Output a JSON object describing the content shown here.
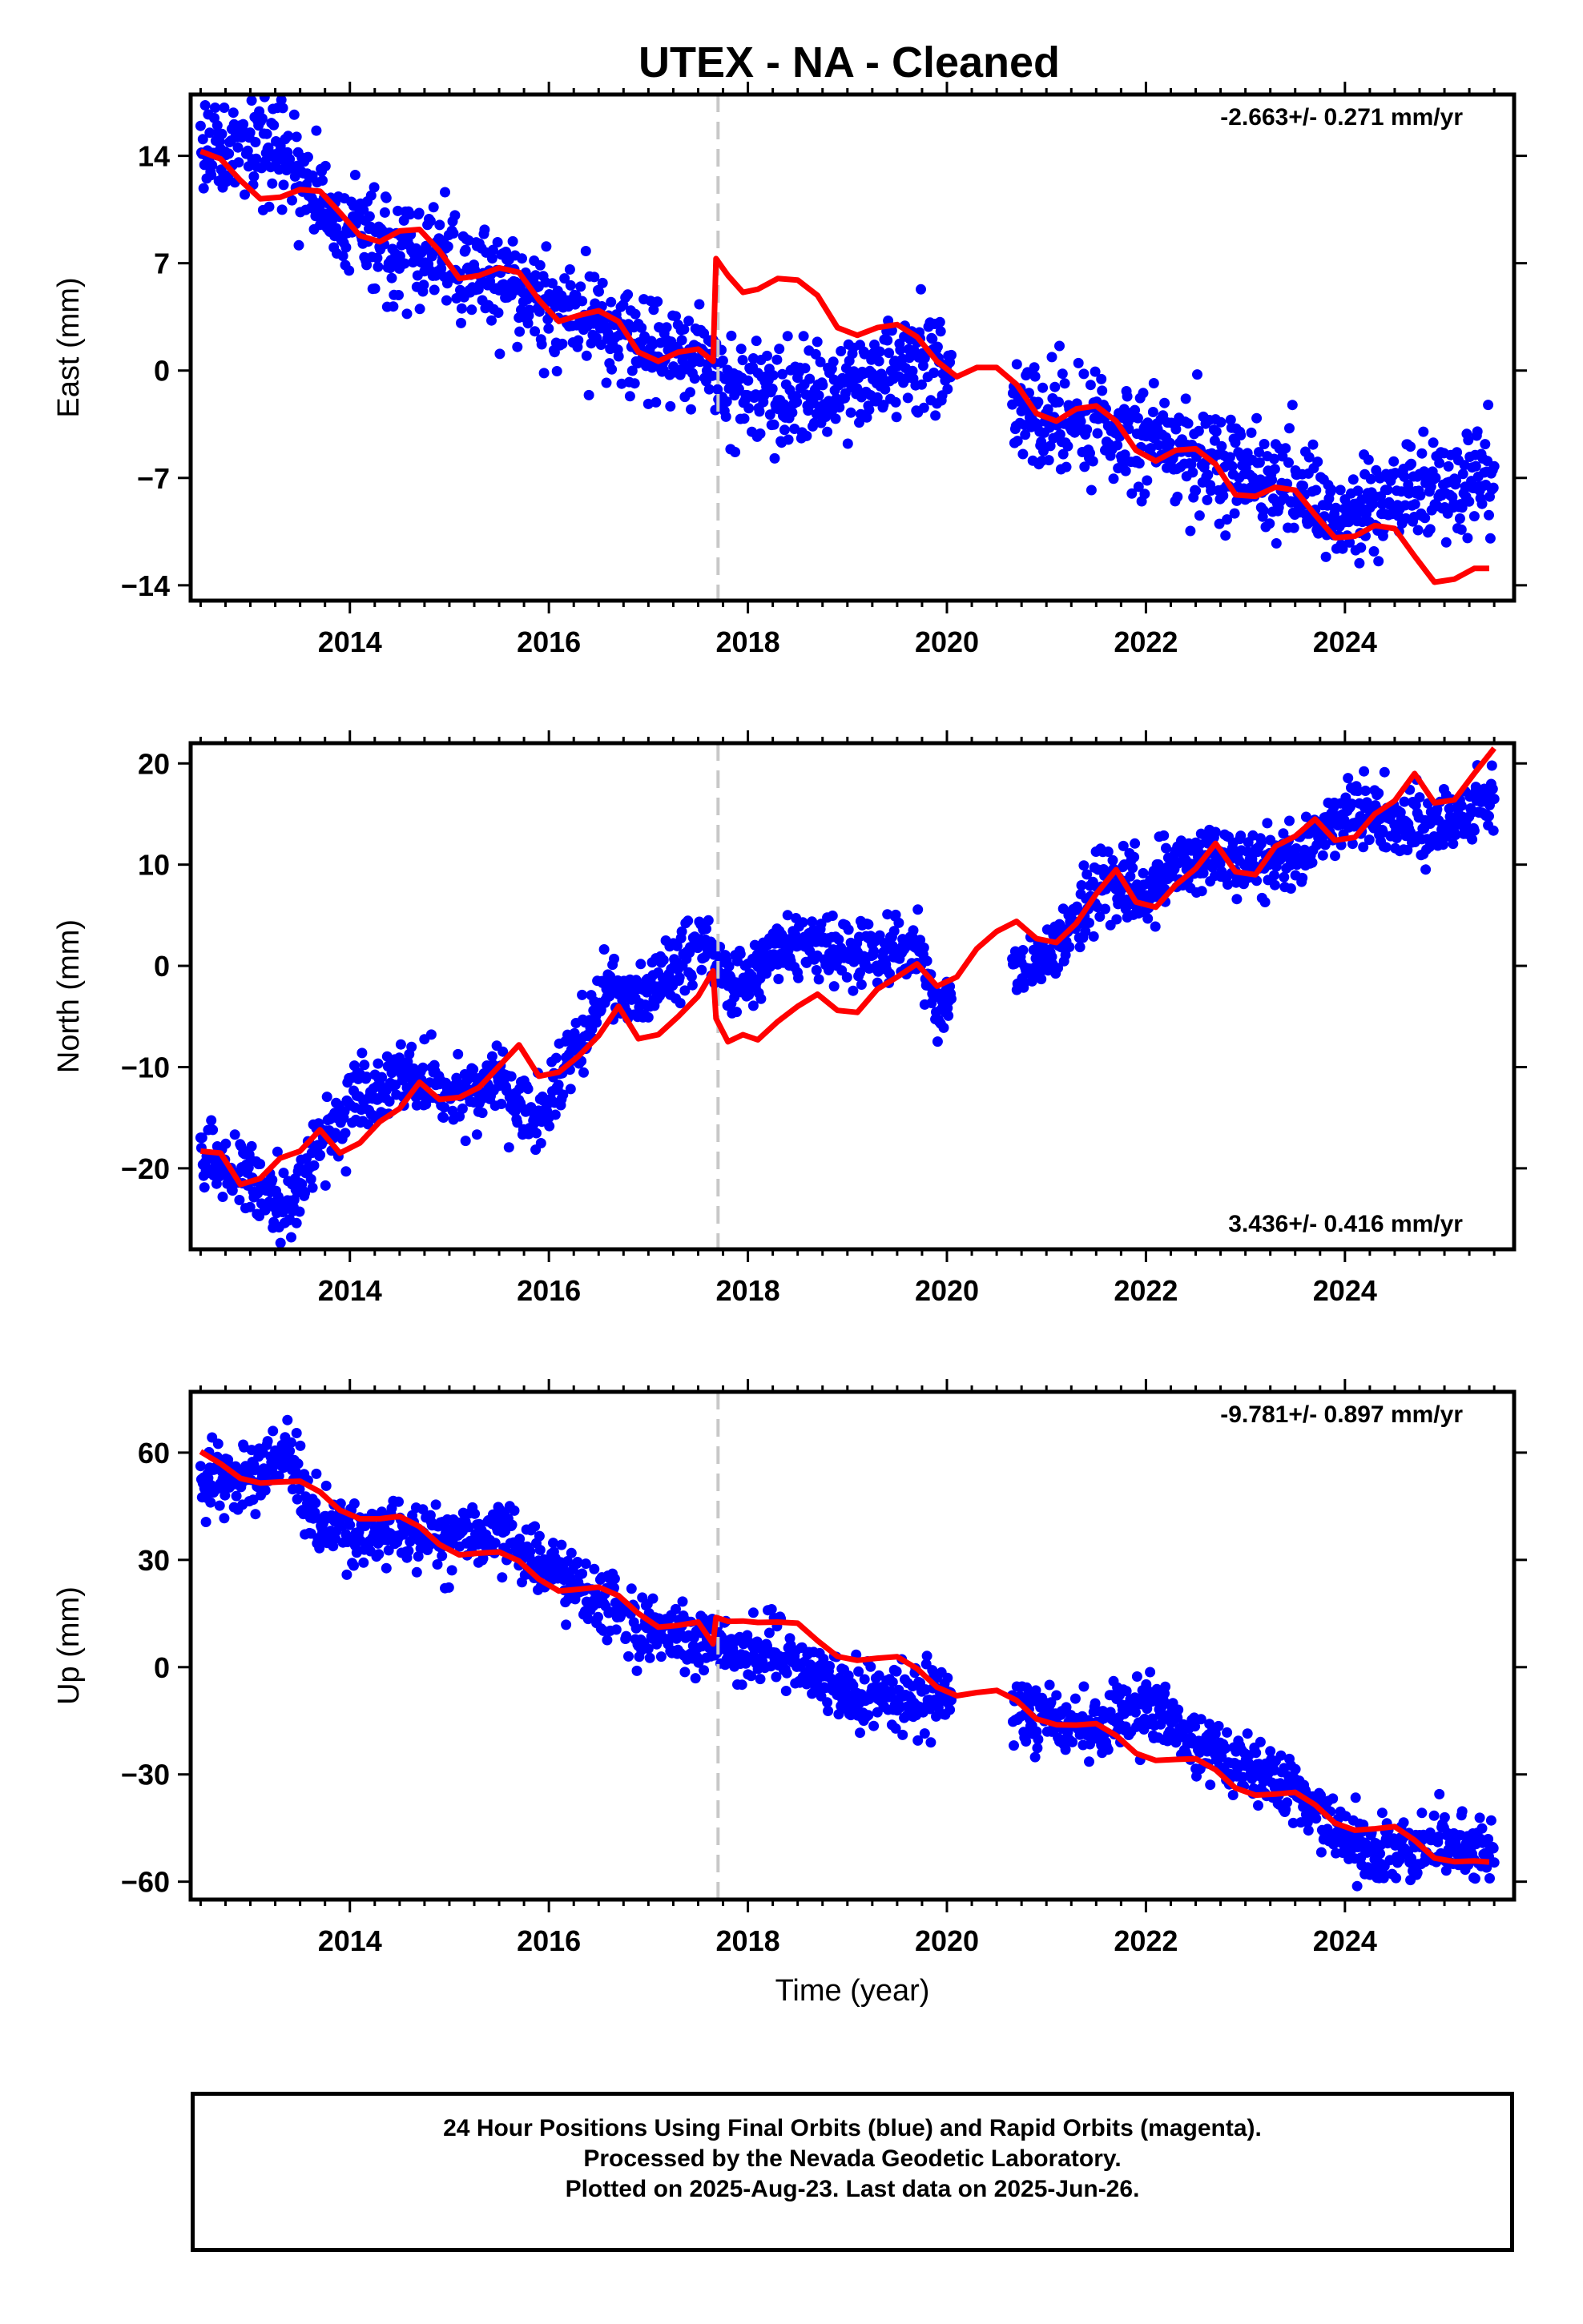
{
  "title": "UTEX  - NA - Cleaned",
  "footer": {
    "line1": "24 Hour Positions Using Final Orbits (blue) and Rapid Orbits (magenta).",
    "line2": "Processed by the Nevada Geodetic Laboratory.",
    "line3": "Plotted on 2025-Aug-23. Last data on 2025-Jun-26."
  },
  "colors": {
    "points": "#0000ff",
    "model": "#ff0000",
    "offset_line": "#c8c8c8"
  },
  "chart_data": [
    {
      "type": "scatter",
      "ylabel": "East (mm)",
      "xlabel": "",
      "rate_label": "-2.663+/- 0.271 mm/yr",
      "rate_position": "top-right",
      "xlim": [
        2012.4,
        2025.7
      ],
      "ylim": [
        -15,
        18
      ],
      "yticks": [
        -14,
        -7,
        0,
        7,
        14
      ],
      "xticks": [
        2014,
        2016,
        2018,
        2020,
        2022,
        2024
      ],
      "offset_epoch": 2017.7,
      "trend_points": [
        [
          2012.5,
          14.8
        ],
        [
          2013.3,
          13.9
        ],
        [
          2014.0,
          9.0
        ],
        [
          2015.0,
          7.0
        ],
        [
          2016.0,
          4.5
        ],
        [
          2017.0,
          1.5
        ],
        [
          2017.65,
          1.0
        ],
        [
          2017.7,
          -1.0
        ],
        [
          2018.5,
          -1.8
        ],
        [
          2019.5,
          0.2
        ],
        [
          2019.85,
          1.0
        ],
        [
          2020.0,
          0.5
        ],
        [
          2021.0,
          -3.0
        ],
        [
          2022.0,
          -4.5
        ],
        [
          2023.0,
          -6.5
        ],
        [
          2024.0,
          -10.0
        ],
        [
          2024.5,
          -7.5
        ],
        [
          2025.5,
          -7.0
        ]
      ],
      "model_points": [
        [
          2012.5,
          14.3
        ],
        [
          2012.7,
          13.8
        ],
        [
          2012.9,
          12.4
        ],
        [
          2013.1,
          11.2
        ],
        [
          2013.3,
          11.3
        ],
        [
          2013.5,
          11.8
        ],
        [
          2013.7,
          11.7
        ],
        [
          2013.9,
          10.3
        ],
        [
          2014.1,
          8.8
        ],
        [
          2014.3,
          8.4
        ],
        [
          2014.5,
          9.1
        ],
        [
          2014.7,
          9.2
        ],
        [
          2014.9,
          7.8
        ],
        [
          2015.1,
          6.0
        ],
        [
          2015.3,
          6.2
        ],
        [
          2015.5,
          6.7
        ],
        [
          2015.7,
          6.4
        ],
        [
          2015.9,
          4.6
        ],
        [
          2016.1,
          3.2
        ],
        [
          2016.3,
          3.6
        ],
        [
          2016.5,
          3.9
        ],
        [
          2016.7,
          3.2
        ],
        [
          2016.9,
          1.2
        ],
        [
          2017.1,
          0.6
        ],
        [
          2017.3,
          1.2
        ],
        [
          2017.5,
          1.4
        ],
        [
          2017.65,
          0.6
        ],
        [
          2017.68,
          7.3
        ],
        [
          2017.8,
          6.2
        ],
        [
          2017.95,
          5.1
        ],
        [
          2018.1,
          5.3
        ],
        [
          2018.3,
          6.0
        ],
        [
          2018.5,
          5.9
        ],
        [
          2018.7,
          4.9
        ],
        [
          2018.9,
          2.8
        ],
        [
          2019.1,
          2.3
        ],
        [
          2019.3,
          2.8
        ],
        [
          2019.5,
          3.0
        ],
        [
          2019.7,
          2.2
        ],
        [
          2019.9,
          0.6
        ],
        [
          2020.1,
          -0.4
        ],
        [
          2020.3,
          0.2
        ],
        [
          2020.5,
          0.2
        ],
        [
          2020.7,
          -0.9
        ],
        [
          2020.9,
          -2.8
        ],
        [
          2021.1,
          -3.3
        ],
        [
          2021.3,
          -2.5
        ],
        [
          2021.5,
          -2.3
        ],
        [
          2021.7,
          -3.3
        ],
        [
          2021.9,
          -5.2
        ],
        [
          2022.1,
          -5.9
        ],
        [
          2022.3,
          -5.2
        ],
        [
          2022.5,
          -5.1
        ],
        [
          2022.7,
          -6.1
        ],
        [
          2022.9,
          -8.1
        ],
        [
          2023.1,
          -8.2
        ],
        [
          2023.3,
          -7.6
        ],
        [
          2023.5,
          -7.8
        ],
        [
          2023.7,
          -9.4
        ],
        [
          2023.9,
          -10.9
        ],
        [
          2024.1,
          -10.8
        ],
        [
          2024.3,
          -10.1
        ],
        [
          2024.5,
          -10.3
        ],
        [
          2024.7,
          -12.1
        ],
        [
          2024.9,
          -13.8
        ],
        [
          2025.1,
          -13.6
        ],
        [
          2025.3,
          -12.9
        ],
        [
          2025.45,
          -12.9
        ]
      ],
      "point_count": 1700,
      "noise_mm": 1.6
    },
    {
      "type": "scatter",
      "ylabel": "North (mm)",
      "xlabel": "",
      "rate_label": "3.436+/- 0.416 mm/yr",
      "rate_position": "bottom-right",
      "xlim": [
        2012.4,
        2025.7
      ],
      "ylim": [
        -28,
        22
      ],
      "yticks": [
        -20,
        -10,
        0,
        10,
        20
      ],
      "xticks": [
        2014,
        2016,
        2018,
        2020,
        2022,
        2024
      ],
      "offset_epoch": 2017.7,
      "trend_points": [
        [
          2012.5,
          -19.5
        ],
        [
          2013.0,
          -21.0
        ],
        [
          2013.4,
          -24.0
        ],
        [
          2013.7,
          -17.0
        ],
        [
          2014.0,
          -14.5
        ],
        [
          2014.5,
          -10.0
        ],
        [
          2015.0,
          -13.0
        ],
        [
          2015.5,
          -11.5
        ],
        [
          2015.9,
          -15.5
        ],
        [
          2016.3,
          -8.0
        ],
        [
          2016.6,
          -2.0
        ],
        [
          2017.0,
          -2.5
        ],
        [
          2017.6,
          2.5
        ],
        [
          2017.8,
          -2.0
        ],
        [
          2018.5,
          2.5
        ],
        [
          2019.0,
          1.5
        ],
        [
          2019.7,
          2.0
        ],
        [
          2019.9,
          -4.5
        ],
        [
          2020.1,
          -2.5
        ],
        [
          2020.7,
          0.0
        ],
        [
          2021.0,
          1.0
        ],
        [
          2021.5,
          8.0
        ],
        [
          2022.0,
          7.5
        ],
        [
          2022.5,
          11.0
        ],
        [
          2023.0,
          10.0
        ],
        [
          2023.5,
          11.0
        ],
        [
          2024.0,
          15.5
        ],
        [
          2024.5,
          14.0
        ],
        [
          2025.0,
          13.5
        ],
        [
          2025.5,
          16.5
        ]
      ],
      "model_points": [
        [
          2012.5,
          -18.3
        ],
        [
          2012.7,
          -18.5
        ],
        [
          2012.9,
          -21.6
        ],
        [
          2013.1,
          -21.0
        ],
        [
          2013.3,
          -19.0
        ],
        [
          2013.5,
          -18.3
        ],
        [
          2013.7,
          -16.2
        ],
        [
          2013.9,
          -18.5
        ],
        [
          2014.1,
          -17.5
        ],
        [
          2014.3,
          -15.4
        ],
        [
          2014.5,
          -14.1
        ],
        [
          2014.7,
          -11.5
        ],
        [
          2014.9,
          -13.2
        ],
        [
          2015.1,
          -13.0
        ],
        [
          2015.3,
          -12.0
        ],
        [
          2015.5,
          -9.9
        ],
        [
          2015.7,
          -7.8
        ],
        [
          2015.9,
          -10.9
        ],
        [
          2016.1,
          -10.5
        ],
        [
          2016.3,
          -8.9
        ],
        [
          2016.5,
          -6.9
        ],
        [
          2016.7,
          -4.0
        ],
        [
          2016.9,
          -7.2
        ],
        [
          2017.1,
          -6.8
        ],
        [
          2017.3,
          -5.0
        ],
        [
          2017.5,
          -3.0
        ],
        [
          2017.65,
          -0.5
        ],
        [
          2017.68,
          -5.2
        ],
        [
          2017.8,
          -7.5
        ],
        [
          2017.95,
          -6.8
        ],
        [
          2018.1,
          -7.3
        ],
        [
          2018.3,
          -5.5
        ],
        [
          2018.5,
          -4.0
        ],
        [
          2018.7,
          -2.8
        ],
        [
          2018.9,
          -4.4
        ],
        [
          2019.1,
          -4.6
        ],
        [
          2019.3,
          -2.3
        ],
        [
          2019.5,
          -1.1
        ],
        [
          2019.7,
          0.2
        ],
        [
          2019.9,
          -2.0
        ],
        [
          2020.1,
          -1.1
        ],
        [
          2020.3,
          1.7
        ],
        [
          2020.5,
          3.4
        ],
        [
          2020.7,
          4.4
        ],
        [
          2020.9,
          2.7
        ],
        [
          2021.1,
          2.3
        ],
        [
          2021.3,
          4.2
        ],
        [
          2021.5,
          7.1
        ],
        [
          2021.7,
          9.5
        ],
        [
          2021.9,
          6.3
        ],
        [
          2022.1,
          5.8
        ],
        [
          2022.3,
          8.0
        ],
        [
          2022.5,
          9.6
        ],
        [
          2022.7,
          12.1
        ],
        [
          2022.9,
          9.3
        ],
        [
          2023.1,
          9.0
        ],
        [
          2023.3,
          11.8
        ],
        [
          2023.5,
          12.8
        ],
        [
          2023.7,
          14.5
        ],
        [
          2023.9,
          12.4
        ],
        [
          2024.1,
          12.7
        ],
        [
          2024.3,
          15.0
        ],
        [
          2024.5,
          16.3
        ],
        [
          2024.7,
          19.0
        ],
        [
          2024.9,
          16.1
        ],
        [
          2025.1,
          16.4
        ],
        [
          2025.3,
          19.0
        ],
        [
          2025.5,
          21.5
        ]
      ],
      "point_count": 1700,
      "noise_mm": 1.6
    },
    {
      "type": "scatter",
      "ylabel": "Up (mm)",
      "xlabel": "Time (year)",
      "rate_label": "-9.781+/- 0.897 mm/yr",
      "rate_position": "top-right",
      "xlim": [
        2012.4,
        2025.7
      ],
      "ylim": [
        -65,
        77
      ],
      "yticks": [
        -60,
        -30,
        0,
        30,
        60
      ],
      "xticks": [
        2014,
        2016,
        2018,
        2020,
        2022,
        2024
      ],
      "offset_epoch": 2017.7,
      "trend_points": [
        [
          2012.5,
          52
        ],
        [
          2013.0,
          53
        ],
        [
          2013.4,
          60
        ],
        [
          2013.6,
          42
        ],
        [
          2014.0,
          37
        ],
        [
          2014.5,
          38
        ],
        [
          2015.0,
          36
        ],
        [
          2015.5,
          38
        ],
        [
          2016.0,
          27
        ],
        [
          2016.5,
          19
        ],
        [
          2017.0,
          10
        ],
        [
          2017.6,
          5
        ],
        [
          2018.0,
          6
        ],
        [
          2018.5,
          2
        ],
        [
          2019.0,
          -7
        ],
        [
          2019.5,
          -9
        ],
        [
          2020.0,
          -8
        ],
        [
          2020.7,
          -12
        ],
        [
          2021.0,
          -15
        ],
        [
          2021.5,
          -17
        ],
        [
          2022.0,
          -10
        ],
        [
          2022.5,
          -21
        ],
        [
          2023.0,
          -29
        ],
        [
          2023.5,
          -34
        ],
        [
          2024.0,
          -49
        ],
        [
          2024.5,
          -52
        ],
        [
          2025.0,
          -49
        ],
        [
          2025.5,
          -52
        ]
      ],
      "model_points": [
        [
          2012.5,
          60.3
        ],
        [
          2012.7,
          56.9
        ],
        [
          2012.9,
          52.8
        ],
        [
          2013.1,
          51.5
        ],
        [
          2013.3,
          51.8
        ],
        [
          2013.5,
          52.0
        ],
        [
          2013.7,
          49.0
        ],
        [
          2013.9,
          43.9
        ],
        [
          2014.1,
          41.5
        ],
        [
          2014.3,
          41.5
        ],
        [
          2014.5,
          42.2
        ],
        [
          2014.7,
          39.3
        ],
        [
          2014.9,
          34.3
        ],
        [
          2015.1,
          31.4
        ],
        [
          2015.3,
          31.9
        ],
        [
          2015.5,
          32.2
        ],
        [
          2015.7,
          29.7
        ],
        [
          2015.9,
          24.6
        ],
        [
          2016.1,
          21.3
        ],
        [
          2016.3,
          21.8
        ],
        [
          2016.5,
          22.4
        ],
        [
          2016.7,
          20.0
        ],
        [
          2016.9,
          15.0
        ],
        [
          2017.1,
          11.2
        ],
        [
          2017.3,
          11.7
        ],
        [
          2017.5,
          12.6
        ],
        [
          2017.65,
          6.5
        ],
        [
          2017.68,
          13.9
        ],
        [
          2017.8,
          12.8
        ],
        [
          2017.95,
          12.9
        ],
        [
          2018.1,
          12.5
        ],
        [
          2018.3,
          12.6
        ],
        [
          2018.5,
          12.3
        ],
        [
          2018.7,
          7.4
        ],
        [
          2018.9,
          3.0
        ],
        [
          2019.1,
          1.9
        ],
        [
          2019.3,
          2.5
        ],
        [
          2019.5,
          2.9
        ],
        [
          2019.7,
          -0.4
        ],
        [
          2019.9,
          -5.6
        ],
        [
          2020.1,
          -8.0
        ],
        [
          2020.3,
          -7.1
        ],
        [
          2020.5,
          -6.5
        ],
        [
          2020.7,
          -9.3
        ],
        [
          2020.9,
          -14.5
        ],
        [
          2021.1,
          -16.1
        ],
        [
          2021.3,
          -16.2
        ],
        [
          2021.5,
          -15.8
        ],
        [
          2021.7,
          -19.1
        ],
        [
          2021.9,
          -24.1
        ],
        [
          2022.1,
          -26.1
        ],
        [
          2022.3,
          -25.8
        ],
        [
          2022.5,
          -25.6
        ],
        [
          2022.7,
          -28.7
        ],
        [
          2022.9,
          -33.8
        ],
        [
          2023.1,
          -35.8
        ],
        [
          2023.3,
          -35.5
        ],
        [
          2023.5,
          -35.0
        ],
        [
          2023.7,
          -38.5
        ],
        [
          2023.9,
          -43.6
        ],
        [
          2024.1,
          -45.6
        ],
        [
          2024.3,
          -45.2
        ],
        [
          2024.5,
          -44.6
        ],
        [
          2024.7,
          -48.4
        ],
        [
          2024.9,
          -53.4
        ],
        [
          2025.1,
          -54.4
        ],
        [
          2025.3,
          -54.2
        ],
        [
          2025.45,
          -54.5
        ]
      ],
      "point_count": 1700,
      "noise_mm": 4.5
    }
  ]
}
